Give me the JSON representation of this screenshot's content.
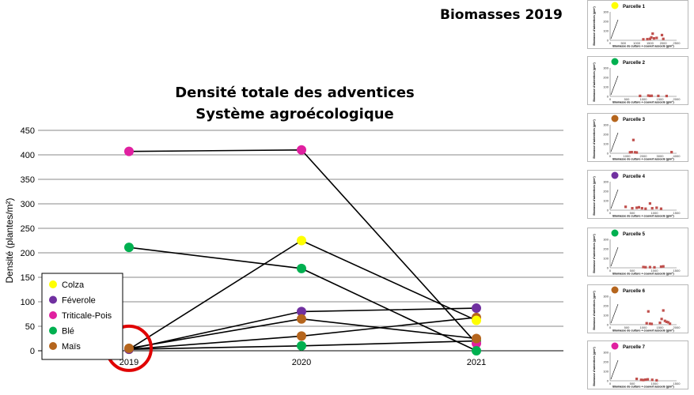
{
  "slide": {
    "header": "Biomasses 2019"
  },
  "colors": {
    "Colza": "#ffff00",
    "Féverole": "#7030a0",
    "Triticale-Pois": "#e020a0",
    "Blé": "#00b050",
    "Maïs": "#b5651d",
    "thumb_point": "#c0504d",
    "highlight_circle": "#e00000"
  },
  "chart_data": [
    {
      "type": "line",
      "title": "Densité totale des adventices",
      "subtitle": "Système agroécologique",
      "ylabel": "Densité (plantes/m²)",
      "xlabel": "",
      "categories": [
        "2019",
        "2020",
        "2021"
      ],
      "ylim": [
        0,
        450
      ],
      "yticks": [
        0,
        50,
        100,
        150,
        200,
        250,
        300,
        350,
        400,
        450
      ],
      "grid": true,
      "legend": "bottom-left",
      "series": [
        {
          "name": "Colza",
          "values": [
            3,
            225,
            62
          ]
        },
        {
          "name": "Féverole",
          "values": [
            3,
            80,
            87
          ]
        },
        {
          "name": "Triticale-Pois",
          "values": [
            407,
            410,
            15
          ]
        },
        {
          "name": "Blé",
          "values": [
            211,
            168,
            0
          ]
        },
        {
          "name": "Maïs",
          "values": [
            5,
            65,
            25
          ]
        }
      ],
      "annotations": [
        {
          "type": "circle",
          "category": "2019",
          "value": 5,
          "color": "red"
        }
      ],
      "extra_lines": [
        {
          "from": {
            "x": "2019",
            "y": 3
          },
          "to": {
            "x": "2020",
            "y": 30
          }
        },
        {
          "from": {
            "x": "2020",
            "y": 30
          },
          "to": {
            "x": "2021",
            "y": 68
          }
        },
        {
          "from": {
            "x": "2019",
            "y": 3
          },
          "to": {
            "x": "2020",
            "y": 10
          }
        },
        {
          "from": {
            "x": "2020",
            "y": 10
          },
          "to": {
            "x": "2021",
            "y": 20
          }
        }
      ],
      "extra_points": [
        {
          "x": "2020",
          "y": 30,
          "series": "Maïs"
        },
        {
          "x": "2021",
          "y": 68,
          "series": "Maïs"
        },
        {
          "x": "2020",
          "y": 10,
          "series": "Blé"
        },
        {
          "x": "2021",
          "y": 20,
          "series": "Blé"
        }
      ]
    }
  ],
  "thumbnails": [
    {
      "label": "Parcelle 1",
      "color_key": "Colza",
      "ylabel": "Biomasse d'adventices (g/m²)",
      "xlabel": "Biomasse de culture + couvert associé (g/m²)",
      "yticks": [
        "300",
        "200",
        "100",
        "0"
      ],
      "xticks": [
        "0",
        "500",
        "1000",
        "1500",
        "2000",
        "2500"
      ],
      "xmax": 2500,
      "ymax": 300,
      "points": [
        [
          1250,
          10
        ],
        [
          1400,
          12
        ],
        [
          1500,
          15
        ],
        [
          1550,
          30
        ],
        [
          1600,
          70
        ],
        [
          1650,
          20
        ],
        [
          1750,
          25
        ],
        [
          1950,
          55
        ],
        [
          2000,
          15
        ]
      ]
    },
    {
      "label": "Parcelle 2",
      "color_key": "Blé",
      "ylabel": "Biomasse d'adventices (g/m²)",
      "xlabel": "Biomasse de culture + couvert associé (g/m²)",
      "yticks": [
        "300",
        "200",
        "100",
        "0"
      ],
      "xticks": [
        "0",
        "500",
        "1000",
        "1500",
        "2000"
      ],
      "xmax": 2000,
      "ymax": 300,
      "points": [
        [
          900,
          5
        ],
        [
          1150,
          8
        ],
        [
          1200,
          5
        ],
        [
          1250,
          6
        ],
        [
          1450,
          5
        ],
        [
          1700,
          4
        ]
      ]
    },
    {
      "label": "Parcelle 3",
      "color_key": "Maïs",
      "ylabel": "Biomasse d'adventices (g/m²)",
      "xlabel": "Biomasse de culture + couvert associé (g/m²)",
      "yticks": [
        "300",
        "200",
        "100",
        "0"
      ],
      "xticks": [
        "0",
        "1000",
        "2000",
        "3000",
        "4000"
      ],
      "xmax": 4000,
      "ymax": 300,
      "points": [
        [
          1200,
          10
        ],
        [
          1300,
          12
        ],
        [
          1400,
          140
        ],
        [
          1500,
          10
        ],
        [
          1600,
          8
        ],
        [
          3700,
          12
        ]
      ]
    },
    {
      "label": "Parcelle 4",
      "color_key": "Féverole",
      "ylabel": "Biomasse d'adventices (g/m²)",
      "xlabel": "Biomasse de culture + couvert associé (g/m²)",
      "yticks": [
        "300",
        "200",
        "100",
        "0"
      ],
      "xticks": [
        "0",
        "500",
        "1000",
        "1500"
      ],
      "xmax": 1500,
      "ymax": 300,
      "points": [
        [
          350,
          35
        ],
        [
          500,
          20
        ],
        [
          600,
          25
        ],
        [
          650,
          30
        ],
        [
          720,
          20
        ],
        [
          800,
          15
        ],
        [
          900,
          70
        ],
        [
          950,
          20
        ],
        [
          1050,
          25
        ],
        [
          1150,
          15
        ]
      ]
    },
    {
      "label": "Parcelle 5",
      "color_key": "Blé",
      "ylabel": "Biomasse d'adventices (g/m²)",
      "xlabel": "Biomasse de culture + couvert associé (g/m²)",
      "yticks": [
        "300",
        "200",
        "100",
        "0"
      ],
      "xticks": [
        "0",
        "500",
        "1000",
        "1500"
      ],
      "xmax": 1500,
      "ymax": 300,
      "points": [
        [
          750,
          8
        ],
        [
          800,
          6
        ],
        [
          900,
          7
        ],
        [
          1000,
          5
        ],
        [
          1150,
          12
        ],
        [
          1200,
          15
        ]
      ]
    },
    {
      "label": "Parcelle 6",
      "color_key": "Maïs",
      "ylabel": "Biomasse d'adventices (g/m²)",
      "xlabel": "Biomasse de culture + couvert associé (g/m²)",
      "yticks": [
        "300",
        "200",
        "100",
        "0"
      ],
      "xticks": [
        "0",
        "500",
        "1000",
        "1500",
        "2000"
      ],
      "xmax": 2000,
      "ymax": 300,
      "points": [
        [
          1100,
          15
        ],
        [
          1150,
          140
        ],
        [
          1200,
          10
        ],
        [
          1250,
          8
        ],
        [
          1500,
          20
        ],
        [
          1550,
          60
        ],
        [
          1600,
          150
        ],
        [
          1650,
          40
        ],
        [
          1700,
          30
        ],
        [
          1750,
          25
        ],
        [
          1800,
          10
        ]
      ]
    },
    {
      "label": "Parcelle 7",
      "color_key": "Triticale-Pois",
      "ylabel": "Biomasse d'adventices (g/m²)",
      "xlabel": "Biomasse de culture + couvert associé (g/m²)",
      "yticks": [
        "300",
        "200",
        "100",
        "0"
      ],
      "xticks": [
        "0",
        "500",
        "1000",
        "1500"
      ],
      "xmax": 1500,
      "ymax": 300,
      "points": [
        [
          600,
          20
        ],
        [
          700,
          10
        ],
        [
          750,
          8
        ],
        [
          800,
          12
        ],
        [
          850,
          15
        ],
        [
          950,
          10
        ],
        [
          1050,
          5
        ]
      ]
    }
  ]
}
